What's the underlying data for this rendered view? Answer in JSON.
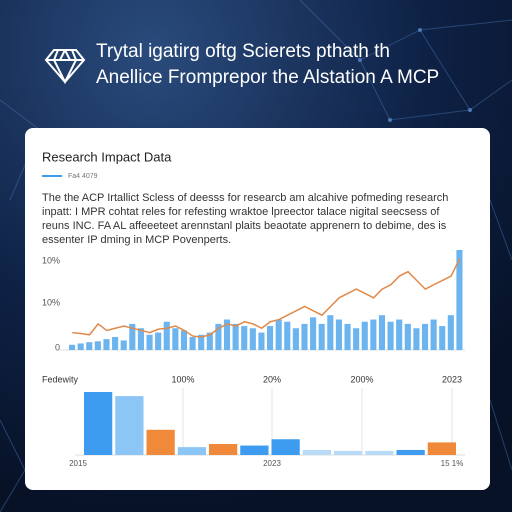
{
  "header": {
    "title_lines": [
      "Trytal igatirg oftg Scierets pthath th",
      "Anellice Fromprepor the Alstation A MCP"
    ]
  },
  "card": {
    "title": "Research Impact Data",
    "tag": "Fa4 4079",
    "paragraph": [
      "The the ACP Irtallict Scless of deesss for researcb am alcahive pofmeding research",
      "inpatt: I MPR cohtat reles for refesting wraktoe lpreector talace nigital seecsess of",
      "reuns INC. FA AL affeeeteet arennstanl plaits beaotate apprenern to debime, des is",
      "essenter IP dming in MCP Povenperts."
    ],
    "chart": {
      "axis_labels": [
        "10%",
        "10%",
        "0"
      ],
      "ylim": [
        0,
        20
      ],
      "bar_color": "#6bb4f0",
      "line_color": "#e08a4a",
      "bars": [
        1.2,
        1.5,
        1.8,
        2,
        2.5,
        3,
        2.2,
        6,
        5,
        3.5,
        4,
        6.5,
        5,
        4.5,
        3,
        3.5,
        4,
        6,
        7,
        6,
        5.5,
        5,
        4,
        5.5,
        7,
        6.5,
        5,
        6,
        7.5,
        6,
        8,
        7,
        6,
        5,
        6.5,
        7,
        8,
        6.5,
        7,
        6,
        5,
        6,
        7,
        5.5,
        8,
        23
      ],
      "line": [
        4,
        3.8,
        3.5,
        6,
        4.5,
        5,
        5.5,
        5,
        4.5,
        4,
        4.8,
        5,
        5.5,
        4.5,
        3.2,
        3,
        3.5,
        5,
        6,
        5.5,
        6.5,
        6,
        5,
        6.5,
        7,
        8,
        9,
        10,
        9,
        8,
        10,
        12,
        13,
        14,
        13,
        12,
        14,
        15,
        17,
        18,
        16,
        14,
        15,
        16,
        17,
        21
      ]
    },
    "chart2": {
      "top_labels": [
        "Fedewity",
        "100%",
        "20%",
        "200%",
        "2023"
      ],
      "bottom_labels": [
        "2015",
        "2023",
        "15 1%"
      ],
      "ylim": [
        0,
        20
      ],
      "bars": [
        20,
        18.7,
        8,
        2.5,
        3.5,
        3,
        5,
        1.6,
        1.3,
        1.3,
        1.6,
        4
      ],
      "colors": [
        "#3d9bf0",
        "#8cc6f6",
        "#f08a3a",
        "#8cc6f6",
        "#f08a3a",
        "#3d9bf0",
        "#3d9bf0",
        "#b9dbf8",
        "#b9dbf8",
        "#b9dbf8",
        "#3d9bf0",
        "#f08a3a"
      ]
    }
  }
}
